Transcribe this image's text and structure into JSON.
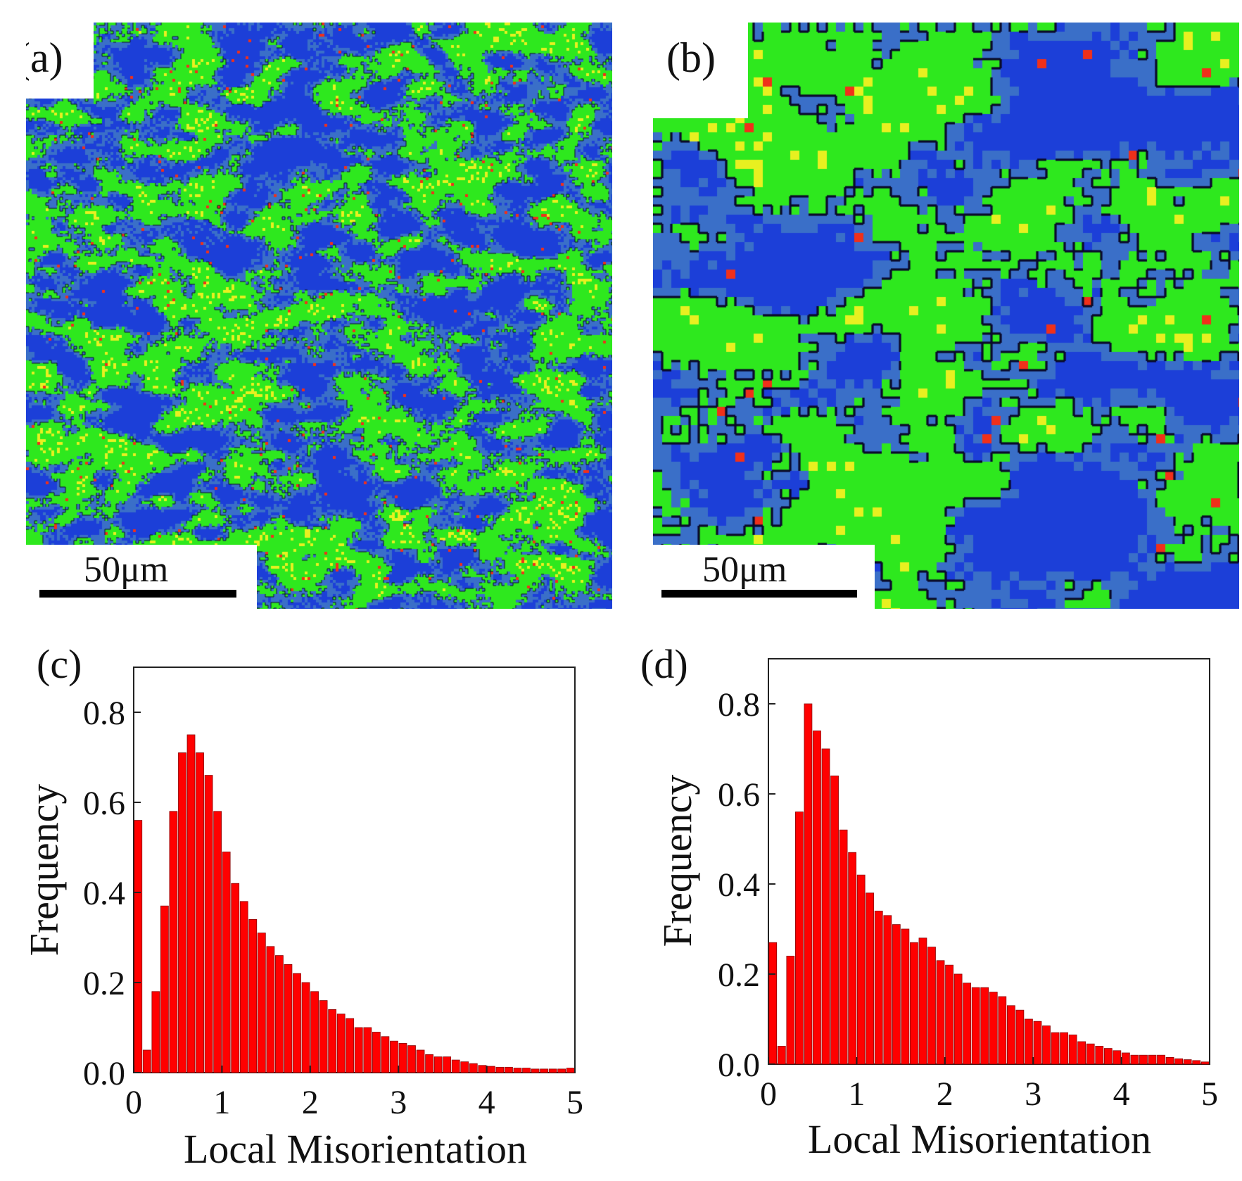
{
  "panels": {
    "a": {
      "label": "(a)",
      "scale_text": "50μm"
    },
    "b": {
      "label": "(b)",
      "scale_text": "50μm"
    },
    "c": {
      "label": "(c)"
    },
    "d": {
      "label": "(d)"
    }
  },
  "colors": {
    "bar": "#ff0000",
    "bar_edge": "#8a0000",
    "map_blue": "#1c3fd8",
    "map_steel": "#3a6fc8",
    "map_green": "#2ee81e",
    "map_yellow": "#e8f020",
    "map_red": "#f0301a",
    "grain_boundary": "#0a0a2a"
  },
  "chart_data": [
    {
      "id": "c",
      "type": "bar",
      "title": "",
      "xlabel": "Local Misorientation",
      "ylabel": "Frequency",
      "xlim": [
        0,
        5
      ],
      "ylim": [
        0,
        0.9
      ],
      "xticks": [
        "0",
        "1",
        "2",
        "3",
        "4",
        "5"
      ],
      "yticks": [
        "0.0",
        "0.2",
        "0.4",
        "0.6",
        "0.8"
      ],
      "bin_width": 0.1,
      "x": [
        0.05,
        0.15,
        0.25,
        0.35,
        0.45,
        0.55,
        0.65,
        0.75,
        0.85,
        0.95,
        1.05,
        1.15,
        1.25,
        1.35,
        1.45,
        1.55,
        1.65,
        1.75,
        1.85,
        1.95,
        2.05,
        2.15,
        2.25,
        2.35,
        2.45,
        2.55,
        2.65,
        2.75,
        2.85,
        2.95,
        3.05,
        3.15,
        3.25,
        3.35,
        3.45,
        3.55,
        3.65,
        3.75,
        3.85,
        3.95,
        4.05,
        4.15,
        4.25,
        4.35,
        4.45,
        4.55,
        4.65,
        4.75,
        4.85,
        4.95
      ],
      "values": [
        0.56,
        0.05,
        0.18,
        0.37,
        0.58,
        0.71,
        0.75,
        0.71,
        0.66,
        0.58,
        0.49,
        0.42,
        0.38,
        0.34,
        0.31,
        0.28,
        0.26,
        0.24,
        0.22,
        0.2,
        0.18,
        0.16,
        0.14,
        0.13,
        0.12,
        0.1,
        0.1,
        0.09,
        0.08,
        0.07,
        0.065,
        0.06,
        0.05,
        0.04,
        0.035,
        0.035,
        0.028,
        0.024,
        0.02,
        0.016,
        0.014,
        0.012,
        0.012,
        0.01,
        0.01,
        0.008,
        0.008,
        0.008,
        0.008,
        0.01
      ]
    },
    {
      "id": "d",
      "type": "bar",
      "title": "",
      "xlabel": "Local Misorientation",
      "ylabel": "Frequency",
      "xlim": [
        0,
        5
      ],
      "ylim": [
        0,
        0.9
      ],
      "xticks": [
        "0",
        "1",
        "2",
        "3",
        "4",
        "5"
      ],
      "yticks": [
        "0.0",
        "0.2",
        "0.4",
        "0.6",
        "0.8"
      ],
      "bin_width": 0.1,
      "x": [
        0.05,
        0.15,
        0.25,
        0.35,
        0.45,
        0.55,
        0.65,
        0.75,
        0.85,
        0.95,
        1.05,
        1.15,
        1.25,
        1.35,
        1.45,
        1.55,
        1.65,
        1.75,
        1.85,
        1.95,
        2.05,
        2.15,
        2.25,
        2.35,
        2.45,
        2.55,
        2.65,
        2.75,
        2.85,
        2.95,
        3.05,
        3.15,
        3.25,
        3.35,
        3.45,
        3.55,
        3.65,
        3.75,
        3.85,
        3.95,
        4.05,
        4.15,
        4.25,
        4.35,
        4.45,
        4.55,
        4.65,
        4.75,
        4.85,
        4.95
      ],
      "values": [
        0.27,
        0.04,
        0.24,
        0.56,
        0.8,
        0.74,
        0.7,
        0.64,
        0.52,
        0.47,
        0.42,
        0.38,
        0.34,
        0.33,
        0.31,
        0.3,
        0.27,
        0.28,
        0.26,
        0.23,
        0.22,
        0.2,
        0.18,
        0.17,
        0.17,
        0.16,
        0.15,
        0.13,
        0.12,
        0.1,
        0.095,
        0.085,
        0.07,
        0.07,
        0.065,
        0.05,
        0.045,
        0.04,
        0.035,
        0.03,
        0.025,
        0.02,
        0.02,
        0.02,
        0.02,
        0.015,
        0.012,
        0.01,
        0.008,
        0.005
      ]
    }
  ]
}
